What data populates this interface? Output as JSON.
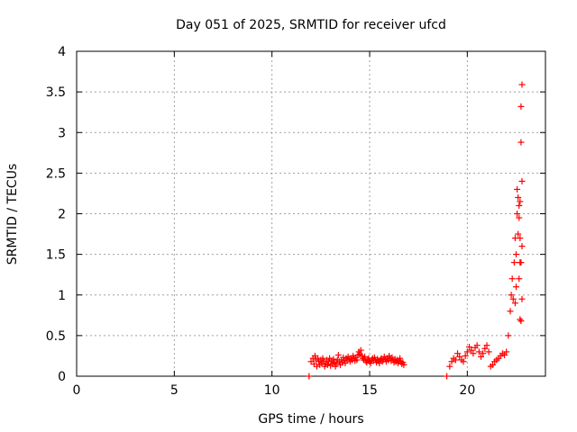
{
  "chart_data": {
    "type": "scatter",
    "title": "Day 051 of 2025, SRMTID for receiver ufcd",
    "xlabel": "GPS time / hours",
    "ylabel": "SRMTID / TECUs",
    "xlim": [
      0,
      24
    ],
    "ylim": [
      0,
      4
    ],
    "xticks": [
      0,
      5,
      10,
      15,
      20
    ],
    "xtick_labels": [
      "0",
      "5",
      "10",
      "15",
      "20"
    ],
    "yticks": [
      0,
      0.5,
      1,
      1.5,
      2,
      2.5,
      3,
      3.5,
      4
    ],
    "ytick_labels": [
      "0",
      "0.5",
      "1",
      "1.5",
      "2",
      "2.5",
      "3",
      "3.5",
      "4"
    ],
    "grid": true,
    "marker": "+",
    "color": "#ff0000",
    "series": [
      {
        "x": [
          11.9,
          12.0,
          12.1,
          12.15,
          12.2,
          12.25,
          12.3,
          12.35,
          12.4,
          12.45,
          12.5,
          12.55,
          12.6,
          12.65,
          12.7,
          12.75,
          12.8,
          12.85,
          12.9,
          12.95,
          13.0,
          13.05,
          13.1,
          13.15,
          13.2,
          13.25,
          13.3,
          13.35,
          13.4,
          13.45,
          13.5,
          13.55,
          13.6,
          13.65,
          13.7,
          13.75,
          13.8,
          13.85,
          13.9,
          13.95,
          14.0,
          14.05,
          14.1,
          14.15,
          14.2,
          14.25,
          14.3,
          14.35,
          14.4,
          14.45,
          14.5,
          14.55,
          14.6,
          14.65,
          14.7,
          14.75,
          14.8,
          14.85,
          14.9,
          14.95,
          15.0,
          15.05,
          15.1,
          15.15,
          15.2,
          15.25,
          15.3,
          15.35,
          15.4,
          15.45,
          15.5,
          15.55,
          15.6,
          15.65,
          15.7,
          15.75,
          15.8,
          15.85,
          15.9,
          15.95,
          16.0,
          16.05,
          16.1,
          16.15,
          16.2,
          16.25,
          16.3,
          16.35,
          16.4,
          16.45,
          16.5,
          16.55,
          16.6,
          16.65,
          16.7,
          16.75,
          18.95,
          19.1,
          19.2,
          19.3,
          19.4,
          19.5,
          19.6,
          19.7,
          19.8,
          19.9,
          20.0,
          20.1,
          20.2,
          20.3,
          20.4,
          20.5,
          20.6,
          20.7,
          20.8,
          20.9,
          21.0,
          21.1,
          21.2,
          21.3,
          21.4,
          21.5,
          21.6,
          21.7,
          21.8,
          21.9,
          22.0,
          22.1,
          22.2,
          22.25,
          22.3,
          22.35,
          22.4,
          22.45,
          22.5,
          22.55,
          22.6,
          22.65,
          22.7,
          22.75,
          22.8
        ],
        "y": [
          0.0,
          0.18,
          0.22,
          0.15,
          0.25,
          0.2,
          0.12,
          0.22,
          0.18,
          0.14,
          0.2,
          0.16,
          0.22,
          0.18,
          0.12,
          0.15,
          0.2,
          0.14,
          0.18,
          0.22,
          0.13,
          0.19,
          0.15,
          0.21,
          0.17,
          0.12,
          0.16,
          0.2,
          0.26,
          0.18,
          0.14,
          0.2,
          0.17,
          0.23,
          0.19,
          0.16,
          0.22,
          0.2,
          0.24,
          0.21,
          0.18,
          0.22,
          0.2,
          0.25,
          0.22,
          0.19,
          0.23,
          0.2,
          0.26,
          0.3,
          0.27,
          0.32,
          0.25,
          0.22,
          0.2,
          0.24,
          0.19,
          0.17,
          0.2,
          0.22,
          0.18,
          0.16,
          0.2,
          0.22,
          0.19,
          0.23,
          0.2,
          0.17,
          0.21,
          0.19,
          0.16,
          0.2,
          0.22,
          0.18,
          0.2,
          0.24,
          0.21,
          0.18,
          0.22,
          0.2,
          0.25,
          0.22,
          0.19,
          0.23,
          0.2,
          0.17,
          0.21,
          0.18,
          0.2,
          0.16,
          0.19,
          0.22,
          0.18,
          0.15,
          0.17,
          0.14,
          0.0,
          0.12,
          0.18,
          0.22,
          0.2,
          0.28,
          0.24,
          0.2,
          0.18,
          0.25,
          0.3,
          0.36,
          0.32,
          0.28,
          0.35,
          0.38,
          0.3,
          0.24,
          0.28,
          0.34,
          0.38,
          0.3,
          0.12,
          0.14,
          0.18,
          0.2,
          0.22,
          0.25,
          0.28,
          0.26,
          0.3,
          0.5,
          0.8,
          1.0,
          1.2,
          0.95,
          1.4,
          1.7,
          1.5,
          2.0,
          2.2,
          2.1,
          1.7,
          1.4,
          1.6
        ],
        "extra_points": [
          [
            22.55,
            2.3
          ],
          [
            22.65,
            1.95
          ],
          [
            22.7,
            2.15
          ],
          [
            22.75,
            2.88
          ],
          [
            22.8,
            2.4
          ],
          [
            22.75,
            3.32
          ],
          [
            22.8,
            3.59
          ],
          [
            22.7,
            0.7
          ],
          [
            22.75,
            0.68
          ],
          [
            22.8,
            0.95
          ],
          [
            22.7,
            1.4
          ],
          [
            22.6,
            1.75
          ],
          [
            22.5,
            1.1
          ],
          [
            22.45,
            0.9
          ],
          [
            22.65,
            1.2
          ]
        ]
      }
    ]
  }
}
